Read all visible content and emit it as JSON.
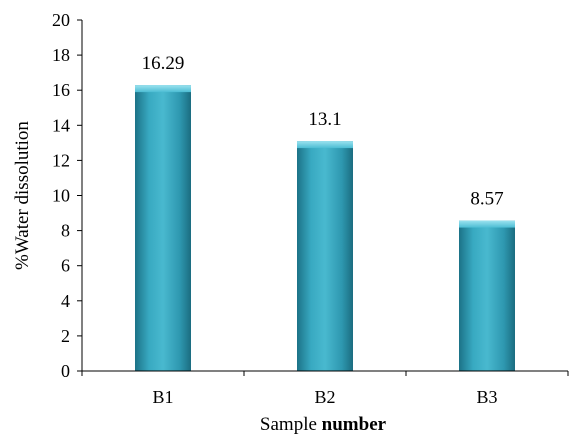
{
  "chart_data": {
    "type": "bar",
    "categories": [
      "B1",
      "B2",
      "B3"
    ],
    "values": [
      16.29,
      13.1,
      8.57
    ],
    "data_labels": [
      "16.29",
      "13.1",
      "8.57"
    ],
    "ylabel": "%Water dissolution",
    "xlabel_regular": "Sample ",
    "xlabel_bold": "number",
    "ylim": [
      0,
      20
    ],
    "yticks": [
      "0",
      "2",
      "4",
      "6",
      "8",
      "10",
      "12",
      "14",
      "16",
      "18",
      "20"
    ],
    "grid": false,
    "legend": "none",
    "colors": {
      "bar": "#2f9db5",
      "bar_light": "#7fd3e6",
      "bar_dark": "#1c6f82",
      "axis": "#000000"
    }
  }
}
